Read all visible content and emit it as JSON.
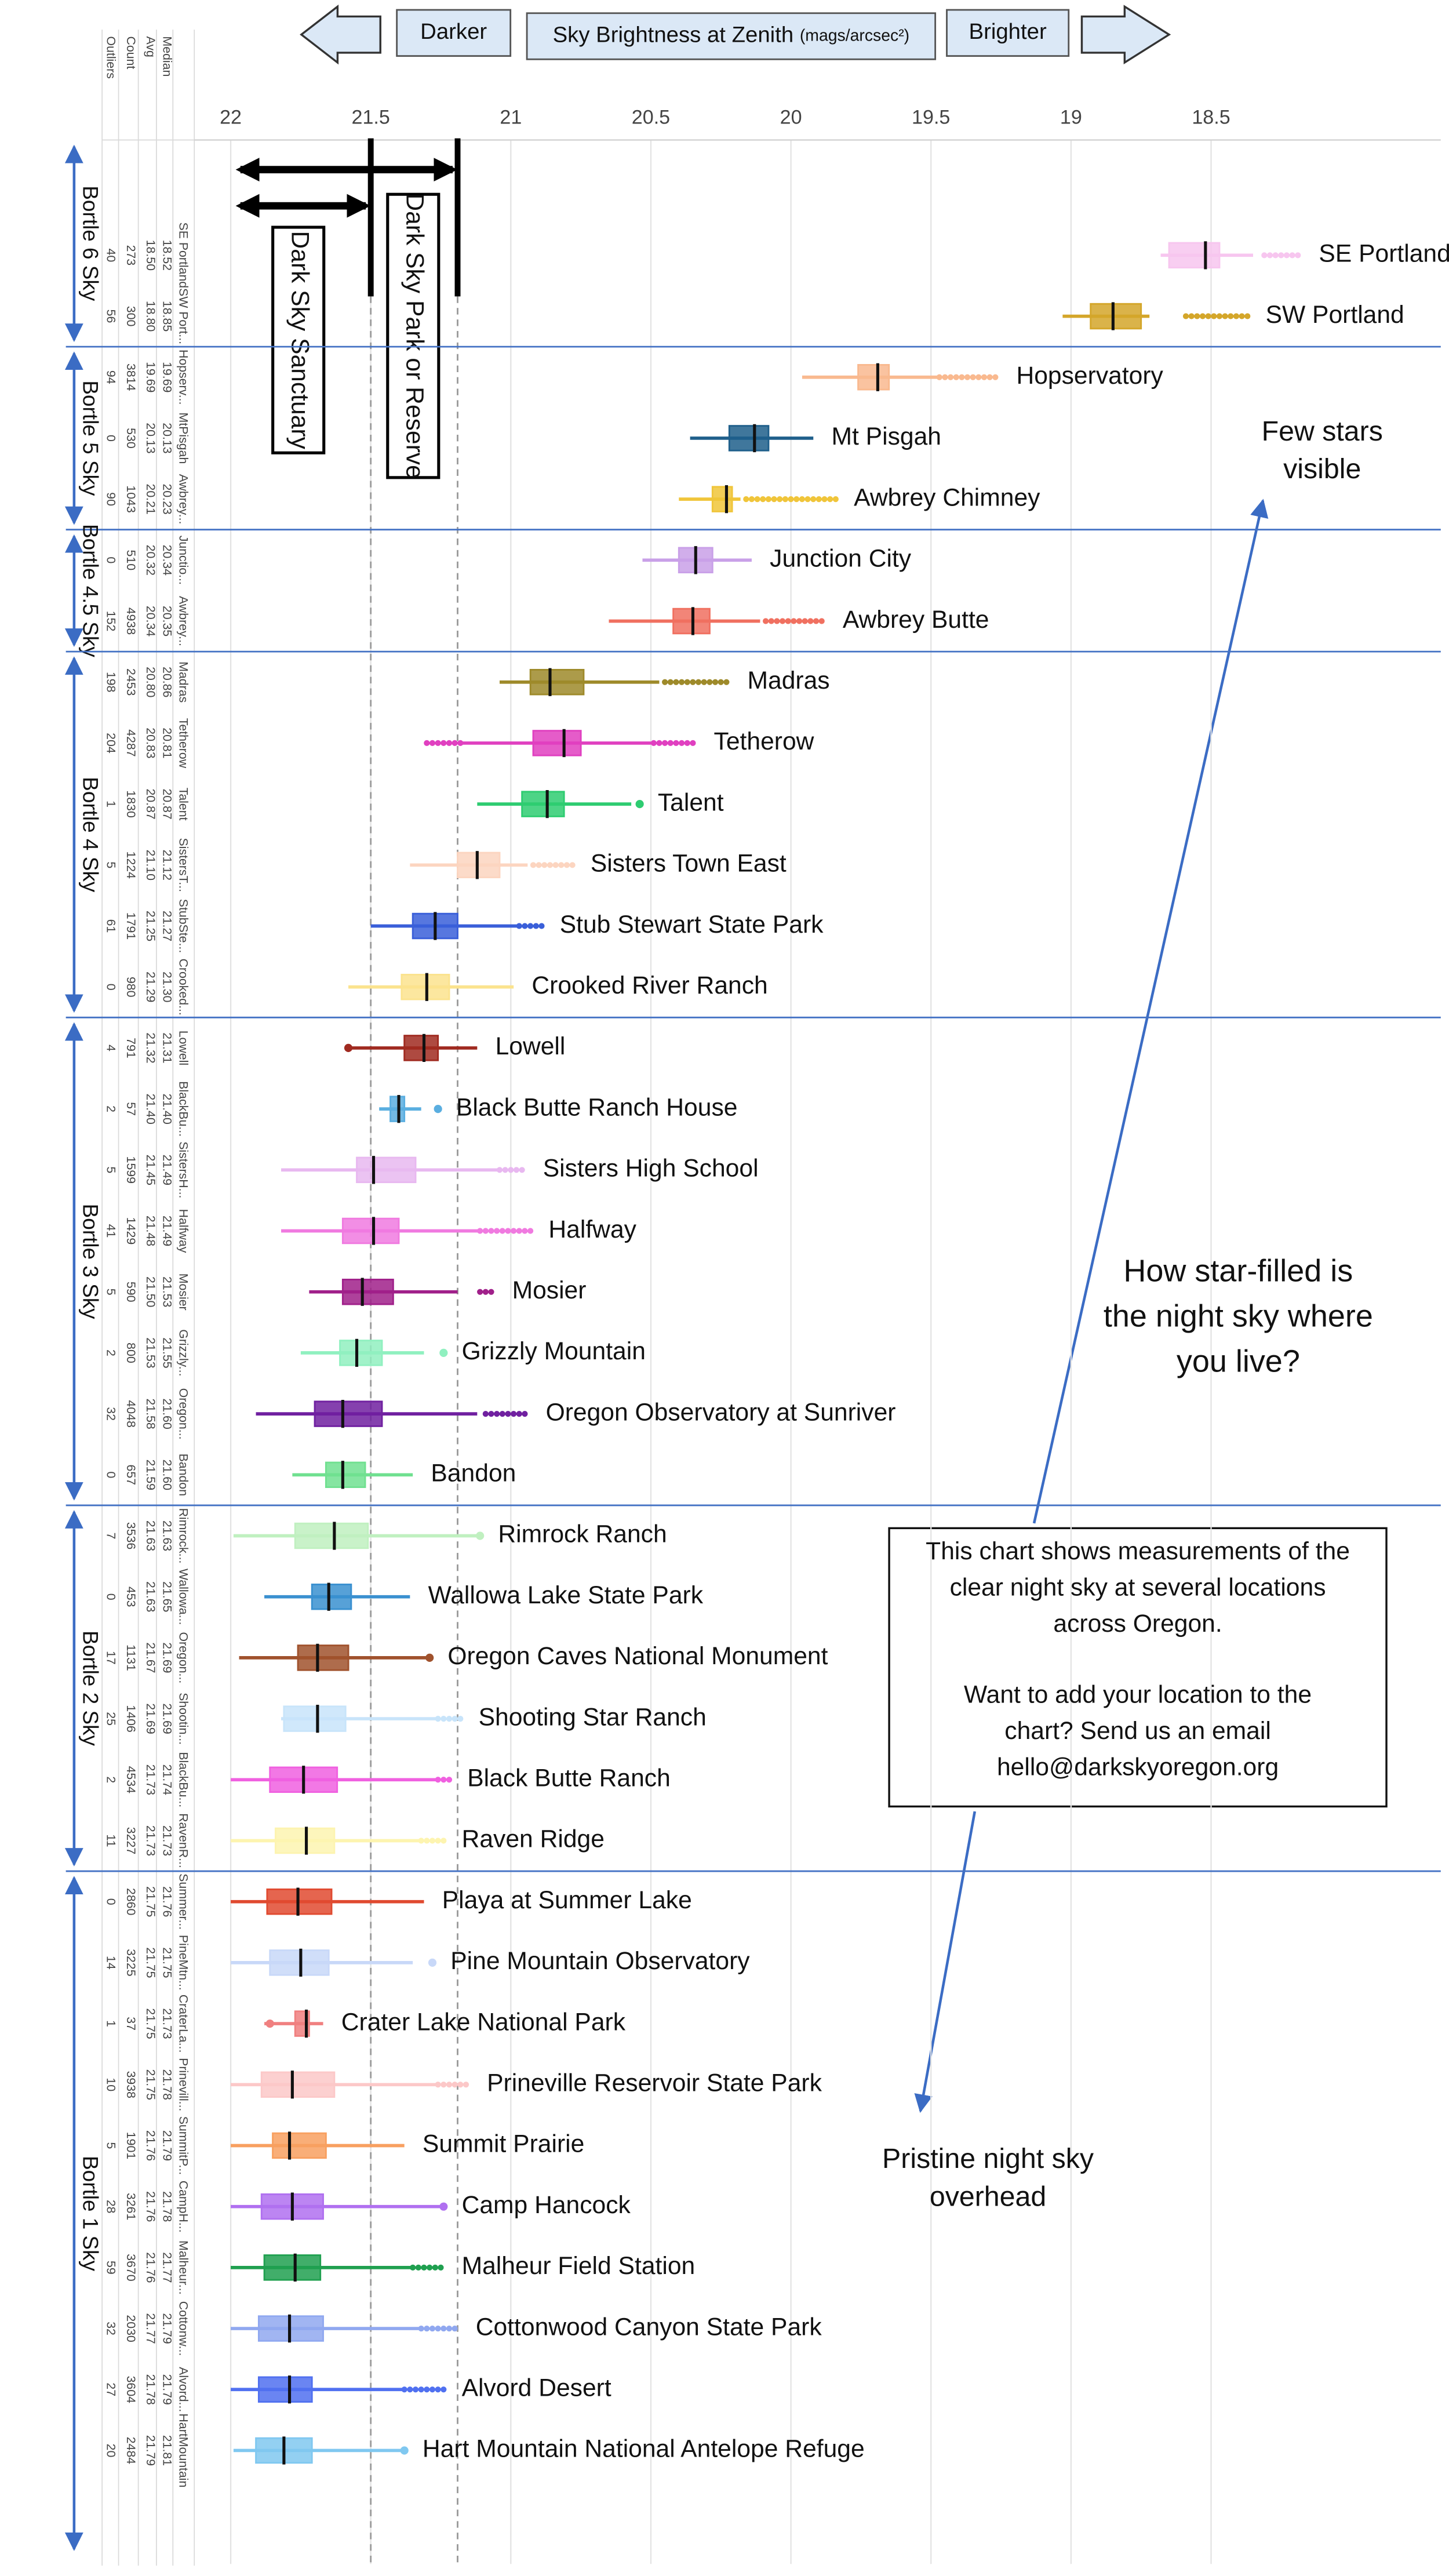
{
  "chart_data": {
    "type": "box",
    "orientation": "horizontal",
    "darker": "Darker",
    "brighter": "Brighter",
    "title": "Sky Brightness at Zenith",
    "x_unit": "(mags/arcsec²)",
    "xlim": [
      22.13,
      17.68
    ],
    "xticks": [
      22,
      21.5,
      21,
      20.5,
      20,
      19.5,
      19,
      18.5
    ],
    "grid": true,
    "table_headers": {
      "median": "Median",
      "avg": "Avg",
      "count": "Count",
      "outliers": "Outliers"
    },
    "thresholds": [
      {
        "label": "Dark Sky Sanctuary",
        "value": 21.5
      },
      {
        "label": "Dark Sky Park or Reserve",
        "value": 21.19
      }
    ],
    "notes": {
      "few_stars": [
        "Few stars",
        "visible"
      ],
      "question": [
        "How star-filled is",
        "the night sky where",
        "you live?"
      ],
      "pristine": [
        "Pristine night sky",
        "overhead"
      ],
      "callout": [
        [
          "This chart shows measurements of the",
          "clear night sky at several locations",
          "across Oregon."
        ],
        [
          "Want to add your location to the",
          "chart? Send us an email",
          "hello@darkskyoregon.org"
        ]
      ]
    },
    "groups": [
      {
        "label": "Bortle 6 Sky",
        "rows": [
          {
            "name": "SE Portland",
            "short": "SE Portland",
            "color": "#f7c6ef",
            "median": 18.52,
            "avg": 18.5,
            "avg_label": "18.50",
            "count": 273,
            "outliers": 40,
            "whisker_dark": 18.68,
            "box_dark": 18.65,
            "box_bright": 18.47,
            "whisker_bright": 18.35,
            "outlier_spans": [
              [
                18.31,
                18.18
              ]
            ]
          },
          {
            "name": "SW Portland",
            "short": "SW Port...",
            "color": "#d4a62a",
            "median": 18.85,
            "avg": 18.8,
            "avg_label": "18.80",
            "count": 300,
            "outliers": 56,
            "whisker_dark": 19.03,
            "box_dark": 18.93,
            "box_bright": 18.75,
            "whisker_bright": 18.72,
            "outlier_spans": [
              [
                18.59,
                18.37
              ]
            ]
          }
        ]
      },
      {
        "label": "Bortle 5 Sky",
        "rows": [
          {
            "name": "Hopservatory",
            "short": "Hopserv...",
            "color": "#f9b98f",
            "median": 19.69,
            "avg": 19.69,
            "count": 3814,
            "outliers": 94,
            "whisker_dark": 19.96,
            "box_dark": 19.76,
            "box_bright": 19.65,
            "whisker_bright": 19.47,
            "outlier_spans": [
              [
                19.47,
                19.26
              ]
            ]
          },
          {
            "name": "Mt Pisgah",
            "short": "MtPisgah",
            "color": "#1f5f8b",
            "median": 20.13,
            "avg": 20.13,
            "count": 530,
            "outliers": 0,
            "whisker_dark": 20.36,
            "box_dark": 20.22,
            "box_bright": 20.08,
            "whisker_bright": 19.92
          },
          {
            "name": "Awbrey Chimney",
            "short": "Awbrey...",
            "color": "#f0c53a",
            "median": 20.23,
            "avg": 20.21,
            "count": 1043,
            "outliers": 90,
            "whisker_dark": 20.4,
            "box_dark": 20.28,
            "box_bright": 20.21,
            "whisker_bright": 20.18,
            "outlier_spans": [
              [
                20.16,
                19.84
              ]
            ]
          }
        ]
      },
      {
        "label": "Bortle 4.5 Sky",
        "rows": [
          {
            "name": "Junction City",
            "short": "Junctio...",
            "color": "#c9a0e8",
            "median": 20.34,
            "avg": 20.32,
            "count": 510,
            "outliers": 0,
            "whisker_dark": 20.53,
            "box_dark": 20.4,
            "box_bright": 20.28,
            "whisker_bright": 20.14
          },
          {
            "name": "Awbrey Butte",
            "short": "Awbrey...",
            "color": "#f07060",
            "median": 20.35,
            "avg": 20.34,
            "count": 4938,
            "outliers": 152,
            "whisker_dark": 20.65,
            "box_dark": 20.42,
            "box_bright": 20.29,
            "whisker_bright": 20.11,
            "outlier_spans": [
              [
                20.09,
                19.88
              ]
            ]
          }
        ]
      },
      {
        "label": "Bortle 4 Sky",
        "rows": [
          {
            "name": "Madras",
            "short": "Madras",
            "color": "#9e8a2a",
            "median": 20.86,
            "avg": 20.8,
            "avg_label": "20.80",
            "count": 2453,
            "outliers": 198,
            "whisker_dark": 21.04,
            "box_dark": 20.93,
            "box_bright": 20.74,
            "whisker_bright": 20.47,
            "outlier_spans": [
              [
                20.45,
                20.22
              ]
            ]
          },
          {
            "name": "Tetherow",
            "short": "Tetherow",
            "color": "#e040c0",
            "median": 20.81,
            "avg": 20.83,
            "count": 4287,
            "outliers": 204,
            "whisker_dark": 21.18,
            "box_dark": 20.92,
            "box_bright": 20.75,
            "whisker_bright": 20.5,
            "outlier_spans": [
              [
                21.3,
                21.18
              ],
              [
                20.49,
                20.34
              ]
            ]
          },
          {
            "name": "Talent",
            "short": "Talent",
            "color": "#2ecc71",
            "median": 20.87,
            "avg": 20.87,
            "count": 1830,
            "outliers": 1,
            "whisker_dark": 21.12,
            "box_dark": 20.96,
            "box_bright": 20.81,
            "whisker_bright": 20.57,
            "outlier_spans": [
              [
                20.54,
                20.54
              ]
            ]
          },
          {
            "name": "Sisters Town East",
            "short": "SistersT...",
            "color": "#fcd5c0",
            "median": 21.12,
            "avg": 21.1,
            "avg_label": "21.10",
            "count": 1224,
            "outliers": 5,
            "whisker_dark": 21.36,
            "box_dark": 21.19,
            "box_bright": 21.04,
            "whisker_bright": 20.94,
            "outlier_spans": [
              [
                20.92,
                20.78
              ]
            ]
          },
          {
            "name": "Stub Stewart State Park",
            "short": "StubSte...",
            "color": "#3a5fd9",
            "median": 21.27,
            "avg": 21.25,
            "count": 1791,
            "outliers": 61,
            "whisker_dark": 21.5,
            "box_dark": 21.35,
            "box_bright": 21.19,
            "whisker_bright": 20.97,
            "outlier_spans": [
              [
                20.97,
                20.89
              ]
            ]
          },
          {
            "name": "Crooked River Ranch",
            "short": "Crooked...",
            "color": "#fbe38e",
            "median": 21.3,
            "median_label": "21.30",
            "avg": 21.29,
            "count": 980,
            "outliers": 0,
            "whisker_dark": 21.58,
            "box_dark": 21.39,
            "box_bright": 21.22,
            "whisker_bright": 20.99
          }
        ]
      },
      {
        "label": "Bortle 3 Sky",
        "rows": [
          {
            "name": "Lowell",
            "short": "Lowell",
            "color": "#a02a20",
            "median": 21.31,
            "avg": 21.32,
            "count": 791,
            "outliers": 4,
            "whisker_dark": 21.58,
            "box_dark": 21.38,
            "box_bright": 21.26,
            "whisker_bright": 21.12,
            "outlier_spans": [
              [
                21.58,
                21.58
              ]
            ]
          },
          {
            "name": "Black Butte Ranch House",
            "short": "BlackBu...",
            "color": "#5aaee0",
            "median": 21.4,
            "median_label": "21.40",
            "avg": 21.4,
            "avg_label": "21.40",
            "count": 57,
            "outliers": 2,
            "whisker_dark": 21.47,
            "box_dark": 21.43,
            "box_bright": 21.38,
            "whisker_bright": 21.32,
            "outlier_spans": [
              [
                21.26,
                21.26
              ]
            ]
          },
          {
            "name": "Sisters High School",
            "short": "SistersH...",
            "color": "#e8b8f0",
            "median": 21.49,
            "avg": 21.45,
            "count": 1599,
            "outliers": 5,
            "whisker_dark": 21.82,
            "box_dark": 21.55,
            "box_bright": 21.34,
            "whisker_bright": 21.04,
            "outlier_spans": [
              [
                21.04,
                20.95
              ]
            ]
          },
          {
            "name": "Halfway",
            "short": "Halfway",
            "color": "#f07ae0",
            "median": 21.49,
            "avg": 21.48,
            "count": 1429,
            "outliers": 41,
            "whisker_dark": 21.82,
            "box_dark": 21.6,
            "box_bright": 21.4,
            "whisker_bright": 21.11,
            "outlier_spans": [
              [
                21.11,
                20.93
              ]
            ]
          },
          {
            "name": "Mosier",
            "short": "Mosier",
            "color": "#a0208a",
            "median": 21.53,
            "avg": 21.5,
            "avg_label": "21.50",
            "count": 590,
            "outliers": 5,
            "whisker_dark": 21.72,
            "box_dark": 21.6,
            "box_bright": 21.42,
            "whisker_bright": 21.19,
            "outlier_spans": [
              [
                21.11,
                21.06
              ]
            ]
          },
          {
            "name": "Grizzly Mountain",
            "short": "Grizzly...",
            "color": "#90f0c0",
            "median": 21.55,
            "avg": 21.53,
            "count": 800,
            "outliers": 2,
            "whisker_dark": 21.75,
            "box_dark": 21.61,
            "box_bright": 21.46,
            "whisker_bright": 21.31,
            "outlier_spans": [
              [
                21.24,
                21.24
              ]
            ]
          },
          {
            "name": "Oregon Observatory at Sunriver",
            "short": "Oregon...",
            "color": "#7020a0",
            "median": 21.6,
            "median_label": "21.60",
            "avg": 21.58,
            "count": 4048,
            "outliers": 32,
            "whisker_dark": 21.91,
            "box_dark": 21.7,
            "box_bright": 21.46,
            "whisker_bright": 21.12,
            "outlier_spans": [
              [
                21.09,
                20.94
              ]
            ]
          },
          {
            "name": "Bandon",
            "short": "Bandon",
            "color": "#70e090",
            "median": 21.6,
            "median_label": "21.60",
            "avg": 21.59,
            "count": 657,
            "outliers": 0,
            "whisker_dark": 21.78,
            "box_dark": 21.66,
            "box_bright": 21.52,
            "whisker_bright": 21.35
          }
        ]
      },
      {
        "label": "Bortle 2 Sky",
        "rows": [
          {
            "name": "Rimrock Ranch",
            "short": "Rimrock...",
            "color": "#c0f0c0",
            "median": 21.63,
            "avg": 21.63,
            "count": 3536,
            "outliers": 7,
            "whisker_dark": 21.99,
            "box_dark": 21.77,
            "box_bright": 21.51,
            "whisker_bright": 21.12,
            "outlier_spans": [
              [
                21.11,
                21.11
              ]
            ]
          },
          {
            "name": "Wallowa Lake State Park",
            "short": "Wallowa...",
            "color": "#3a90d0",
            "median": 21.65,
            "avg": 21.63,
            "count": 453,
            "outliers": 0,
            "whisker_dark": 21.88,
            "box_dark": 21.71,
            "box_bright": 21.57,
            "whisker_bright": 21.36
          },
          {
            "name": "Oregon Caves National Monument",
            "short": "Oregon...",
            "color": "#a0522d",
            "median": 21.69,
            "avg": 21.67,
            "count": 1131,
            "outliers": 17,
            "whisker_dark": 21.97,
            "box_dark": 21.76,
            "box_bright": 21.58,
            "whisker_bright": 21.29,
            "outlier_spans": [
              [
                21.29,
                21.29
              ]
            ]
          },
          {
            "name": "Shooting Star Ranch",
            "short": "Shootin...",
            "color": "#c8e4fa",
            "median": 21.69,
            "avg": 21.69,
            "count": 1406,
            "outliers": 25,
            "whisker_dark": 21.82,
            "box_dark": 21.81,
            "box_bright": 21.59,
            "whisker_bright": 21.26,
            "outlier_spans": [
              [
                21.26,
                21.18
              ]
            ]
          },
          {
            "name": "Black Butte Ranch",
            "short": "BlackBu...",
            "color": "#f060e0",
            "median": 21.74,
            "avg": 21.73,
            "count": 4534,
            "outliers": 2,
            "whisker_dark": 22.0,
            "box_dark": 21.86,
            "box_bright": 21.62,
            "whisker_bright": 21.26,
            "outlier_spans": [
              [
                21.26,
                21.22
              ]
            ]
          },
          {
            "name": "Raven Ridge",
            "short": "RavenR...",
            "color": "#fdf4b0",
            "median": 21.73,
            "avg": 21.73,
            "count": 3227,
            "outliers": 11,
            "whisker_dark": 22.0,
            "box_dark": 21.84,
            "box_bright": 21.63,
            "whisker_bright": 21.32,
            "outlier_spans": [
              [
                21.32,
                21.24
              ]
            ]
          }
        ]
      },
      {
        "label": "Bortle 1 Sky",
        "rows": [
          {
            "name": "Playa at Summer Lake",
            "short": "Summer...",
            "color": "#e04a30",
            "median": 21.76,
            "avg": 21.75,
            "count": 2860,
            "outliers": 0,
            "whisker_dark": 22.0,
            "box_dark": 21.87,
            "box_bright": 21.64,
            "whisker_bright": 21.31
          },
          {
            "name": "Pine Mountain Observatory",
            "short": "PineMtn...",
            "color": "#c8d8f8",
            "median": 21.75,
            "avg": 21.75,
            "count": 3225,
            "outliers": 14,
            "whisker_dark": 22.0,
            "box_dark": 21.86,
            "box_bright": 21.65,
            "whisker_bright": 21.35,
            "outlier_spans": [
              [
                21.28,
                21.28
              ]
            ]
          },
          {
            "name": "Crater Lake National Park",
            "short": "CraterLa...",
            "color": "#f08080",
            "median": 21.73,
            "avg": 21.75,
            "count": 37,
            "outliers": 1,
            "whisker_dark": 21.88,
            "box_dark": 21.77,
            "box_bright": 21.72,
            "whisker_bright": 21.67,
            "outlier_spans": [
              [
                21.86,
                21.86
              ]
            ]
          },
          {
            "name": "Prineville Reservoir State Park",
            "short": "Prinevill...",
            "color": "#fcc8c8",
            "median": 21.78,
            "avg": 21.75,
            "count": 3938,
            "outliers": 10,
            "whisker_dark": 22.0,
            "box_dark": 21.89,
            "box_bright": 21.63,
            "whisker_bright": 21.26,
            "outlier_spans": [
              [
                21.26,
                21.15
              ]
            ]
          },
          {
            "name": "Summit Prairie",
            "short": "SummitP...",
            "color": "#f8a060",
            "median": 21.79,
            "avg": 21.76,
            "count": 1901,
            "outliers": 5,
            "whisker_dark": 22.0,
            "box_dark": 21.85,
            "box_bright": 21.66,
            "whisker_bright": 21.38
          },
          {
            "name": "Camp Hancock",
            "short": "CampH...",
            "color": "#b070f0",
            "median": 21.78,
            "avg": 21.76,
            "count": 3261,
            "outliers": 28,
            "whisker_dark": 22.0,
            "box_dark": 21.89,
            "box_bright": 21.67,
            "whisker_bright": 21.24,
            "outlier_spans": [
              [
                21.24,
                21.24
              ]
            ]
          },
          {
            "name": "Malheur Field Station",
            "short": "Malheur...",
            "color": "#20a050",
            "median": 21.77,
            "avg": 21.76,
            "count": 3670,
            "outliers": 59,
            "whisker_dark": 22.0,
            "box_dark": 21.88,
            "box_bright": 21.68,
            "whisker_bright": 21.35,
            "outlier_spans": [
              [
                21.35,
                21.24
              ]
            ]
          },
          {
            "name": "Cottonwood Canyon State Park",
            "short": "Cottonw...",
            "color": "#90a8f0",
            "median": 21.79,
            "avg": 21.77,
            "count": 2030,
            "outliers": 32,
            "whisker_dark": 22.0,
            "box_dark": 21.9,
            "box_bright": 21.67,
            "whisker_bright": 21.32,
            "outlier_spans": [
              [
                21.32,
                21.19
              ]
            ]
          },
          {
            "name": "Alvord Desert",
            "short": "Alvord...",
            "color": "#5070f0",
            "median": 21.79,
            "avg": 21.78,
            "count": 3604,
            "outliers": 27,
            "whisker_dark": 22.0,
            "box_dark": 21.9,
            "box_bright": 21.71,
            "whisker_bright": 21.38,
            "outlier_spans": [
              [
                21.38,
                21.24
              ]
            ]
          },
          {
            "name": "Hart Mountain National Antelope Refuge",
            "short": "HartMountain",
            "color": "#80c8f0",
            "median": 21.81,
            "avg": 21.79,
            "count": 2484,
            "outliers": 20,
            "whisker_dark": 21.99,
            "box_dark": 21.91,
            "box_bright": 21.71,
            "whisker_bright": 21.38,
            "outlier_spans": [
              [
                21.38,
                21.38
              ]
            ]
          }
        ]
      }
    ]
  }
}
